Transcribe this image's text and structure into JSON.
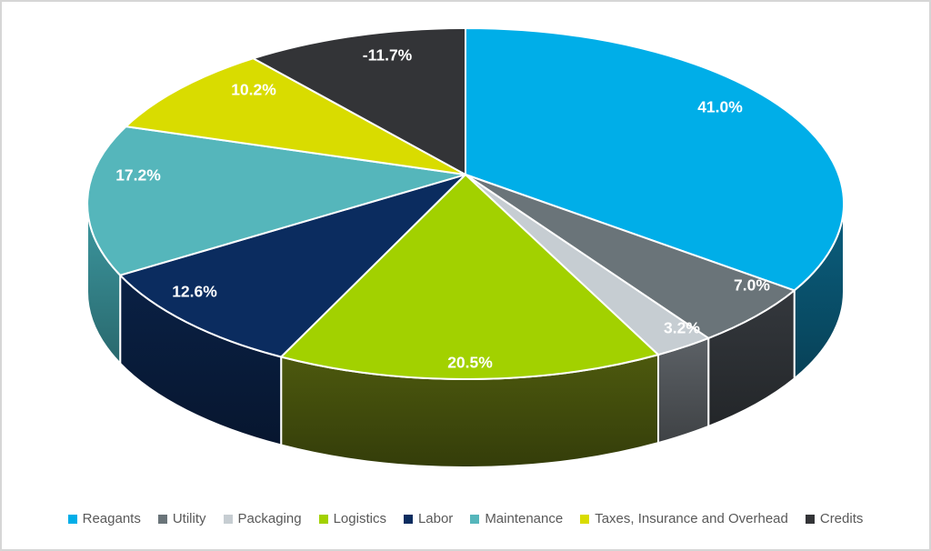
{
  "chart_data": {
    "type": "pie",
    "projection": "3d",
    "legend_position": "bottom",
    "label_color": "#FFFFFF",
    "legend_text_color": "#595959",
    "frame_border_color": "#D6D6D6",
    "slices": [
      {
        "label": "Reagants",
        "value": 41.0,
        "display": "41.0%",
        "color": "#00AEE8",
        "side_color": "#0B6080"
      },
      {
        "label": "Utility",
        "value": 7.0,
        "display": "7.0%",
        "color": "#6A7479",
        "side_color": "#34383D"
      },
      {
        "label": "Packaging",
        "value": 3.2,
        "display": "3.2%",
        "color": "#C6CDD2",
        "side_color": "#5C6166"
      },
      {
        "label": "Logistics",
        "value": 20.5,
        "display": "20.5%",
        "color": "#A2D100",
        "side_color": "#4D590E"
      },
      {
        "label": "Labor",
        "value": 12.6,
        "display": "12.6%",
        "color": "#0B2C5F",
        "side_color": "#0A2145"
      },
      {
        "label": "Maintenance",
        "value": 17.2,
        "display": "17.2%",
        "color": "#55B6BB",
        "side_color": "#3D99A1"
      },
      {
        "label": "Taxes, Insurance and Overhead",
        "value": 10.2,
        "display": "10.2%",
        "color": "#D9DC00",
        "side_color": "#A9AC00"
      },
      {
        "label": "Credits",
        "value": -11.7,
        "display": "-11.7%",
        "color": "#333437",
        "side_color": "#212224"
      }
    ]
  }
}
